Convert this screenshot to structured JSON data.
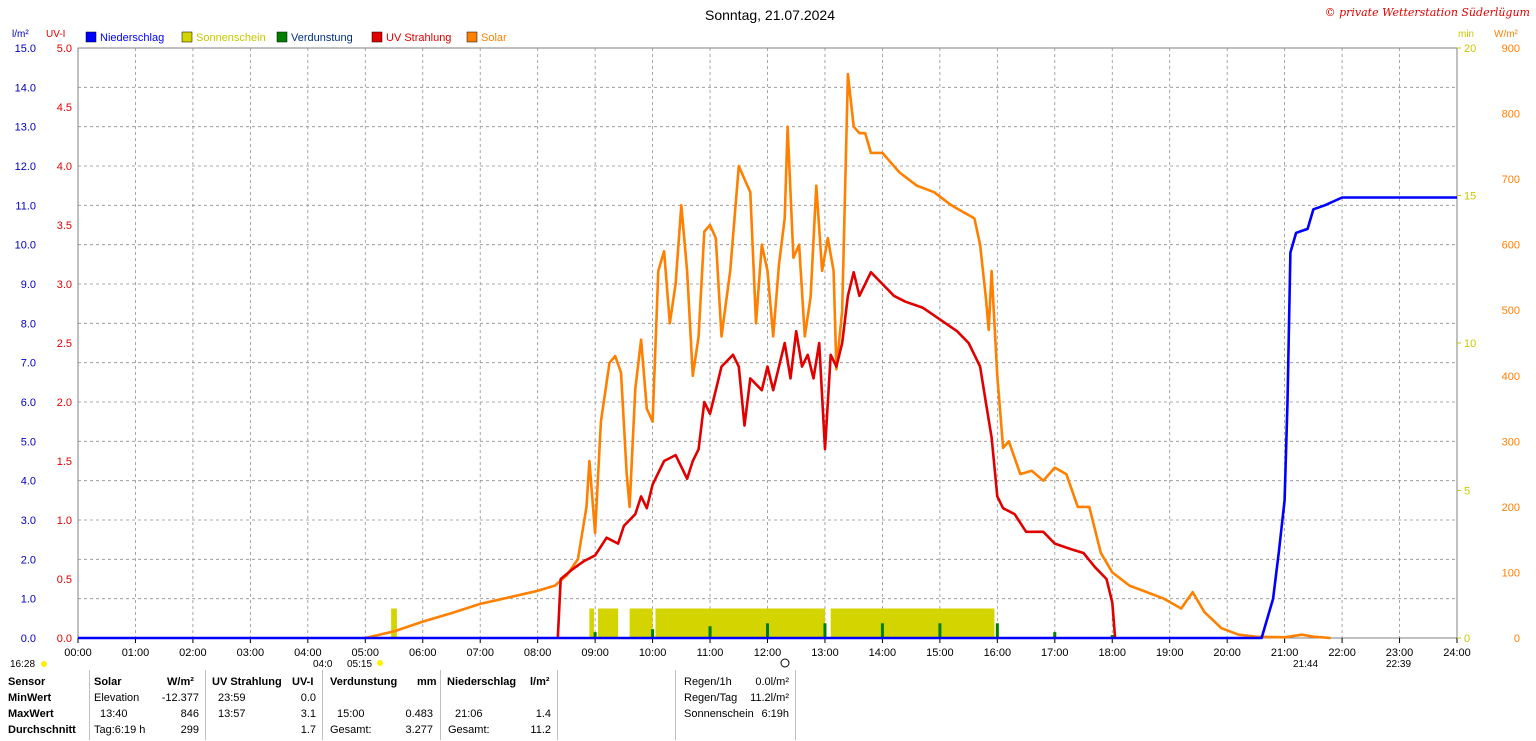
{
  "title": "Sonntag, 21.07.2024",
  "copyright": "© private Wetterstation Süderlügum",
  "units": {
    "left1": "l/m²",
    "left2": "UV-I",
    "right1": "min",
    "right2": "W/m²"
  },
  "legend": [
    {
      "label": "Niederschlag",
      "color": "#0000ff"
    },
    {
      "label": "Sonnenschein",
      "color": "#d4d400"
    },
    {
      "label": "Verdunstung",
      "color": "#008000"
    },
    {
      "label": "UV Strahlung",
      "color": "#e00000"
    },
    {
      "label": "Solar",
      "color": "#ff8000"
    }
  ],
  "markers": {
    "left_time": "16:28",
    "sunrise": "04:0",
    "t0515": "05:15",
    "t2144": "21:44",
    "t2239": "22:39"
  },
  "chart_data": {
    "type": "line",
    "title": "Sonntag, 21.07.2024",
    "x_ticks": [
      "00:00",
      "01:00",
      "02:00",
      "03:00",
      "04:00",
      "05:00",
      "06:00",
      "07:00",
      "08:00",
      "09:00",
      "10:00",
      "11:00",
      "12:00",
      "13:00",
      "14:00",
      "15:00",
      "16:00",
      "17:00",
      "18:00",
      "19:00",
      "20:00",
      "21:00",
      "22:00",
      "23:00",
      "24:00"
    ],
    "axes": {
      "rain": {
        "unit": "l/m²",
        "range": [
          0,
          15
        ],
        "ticks": [
          "0.0",
          "1.0",
          "2.0",
          "3.0",
          "4.0",
          "5.0",
          "6.0",
          "7.0",
          "8.0",
          "9.0",
          "10.0",
          "11.0",
          "12.0",
          "13.0",
          "14.0",
          "15.0"
        ]
      },
      "uv": {
        "unit": "UV-I",
        "range": [
          0,
          5
        ],
        "ticks": [
          "0.0",
          "0.5",
          "1.0",
          "1.5",
          "2.0",
          "2.5",
          "3.0",
          "3.5",
          "4.0",
          "4.5",
          "5.0"
        ]
      },
      "sunshine": {
        "unit": "min",
        "range": [
          0,
          20
        ],
        "ticks": [
          "0",
          "5",
          "10",
          "15",
          "20"
        ]
      },
      "solar": {
        "unit": "W/m²",
        "range": [
          0,
          900
        ],
        "ticks": [
          "0",
          "100",
          "200",
          "300",
          "400",
          "500",
          "600",
          "700",
          "800",
          "900"
        ]
      }
    },
    "grid": true,
    "series": [
      {
        "name": "Solar",
        "axis": "solar",
        "color": "#ff8000",
        "points": [
          [
            5.0,
            0
          ],
          [
            5.5,
            10
          ],
          [
            6.0,
            25
          ],
          [
            6.5,
            38
          ],
          [
            7.0,
            52
          ],
          [
            7.5,
            62
          ],
          [
            8.0,
            72
          ],
          [
            8.3,
            80
          ],
          [
            8.5,
            95
          ],
          [
            8.7,
            120
          ],
          [
            8.85,
            200
          ],
          [
            8.9,
            270
          ],
          [
            9.0,
            160
          ],
          [
            9.1,
            330
          ],
          [
            9.25,
            420
          ],
          [
            9.35,
            430
          ],
          [
            9.45,
            405
          ],
          [
            9.55,
            250
          ],
          [
            9.6,
            200
          ],
          [
            9.7,
            380
          ],
          [
            9.8,
            455
          ],
          [
            9.9,
            350
          ],
          [
            10.0,
            330
          ],
          [
            10.1,
            560
          ],
          [
            10.2,
            590
          ],
          [
            10.3,
            480
          ],
          [
            10.4,
            540
          ],
          [
            10.5,
            660
          ],
          [
            10.6,
            560
          ],
          [
            10.7,
            400
          ],
          [
            10.8,
            460
          ],
          [
            10.9,
            620
          ],
          [
            11.0,
            630
          ],
          [
            11.1,
            610
          ],
          [
            11.2,
            460
          ],
          [
            11.35,
            560
          ],
          [
            11.5,
            720
          ],
          [
            11.6,
            700
          ],
          [
            11.7,
            680
          ],
          [
            11.8,
            480
          ],
          [
            11.9,
            600
          ],
          [
            12.0,
            560
          ],
          [
            12.1,
            460
          ],
          [
            12.2,
            570
          ],
          [
            12.3,
            640
          ],
          [
            12.35,
            780
          ],
          [
            12.45,
            580
          ],
          [
            12.55,
            600
          ],
          [
            12.65,
            460
          ],
          [
            12.75,
            520
          ],
          [
            12.85,
            690
          ],
          [
            12.95,
            560
          ],
          [
            13.05,
            610
          ],
          [
            13.15,
            560
          ],
          [
            13.2,
            410
          ],
          [
            13.3,
            500
          ],
          [
            13.4,
            860
          ],
          [
            13.5,
            780
          ],
          [
            13.6,
            770
          ],
          [
            13.7,
            770
          ],
          [
            13.8,
            740
          ],
          [
            14.0,
            740
          ],
          [
            14.3,
            710
          ],
          [
            14.6,
            690
          ],
          [
            14.9,
            680
          ],
          [
            15.2,
            660
          ],
          [
            15.4,
            650
          ],
          [
            15.6,
            640
          ],
          [
            15.7,
            600
          ],
          [
            15.8,
            520
          ],
          [
            15.85,
            470
          ],
          [
            15.9,
            560
          ],
          [
            16.0,
            400
          ],
          [
            16.1,
            290
          ],
          [
            16.2,
            300
          ],
          [
            16.4,
            250
          ],
          [
            16.6,
            255
          ],
          [
            16.8,
            240
          ],
          [
            17.0,
            260
          ],
          [
            17.2,
            250
          ],
          [
            17.4,
            200
          ],
          [
            17.6,
            200
          ],
          [
            17.8,
            130
          ],
          [
            18.0,
            100
          ],
          [
            18.3,
            80
          ],
          [
            18.6,
            70
          ],
          [
            18.9,
            60
          ],
          [
            19.2,
            45
          ],
          [
            19.4,
            70
          ],
          [
            19.6,
            40
          ],
          [
            19.9,
            15
          ],
          [
            20.2,
            5
          ],
          [
            20.5,
            2
          ],
          [
            21.0,
            1
          ],
          [
            21.3,
            5
          ],
          [
            21.5,
            2
          ],
          [
            21.8,
            0
          ]
        ]
      },
      {
        "name": "UV Strahlung",
        "axis": "uv",
        "color": "#e00000",
        "points": [
          [
            8.35,
            0.0
          ],
          [
            8.4,
            0.5
          ],
          [
            8.6,
            0.58
          ],
          [
            8.8,
            0.65
          ],
          [
            9.0,
            0.7
          ],
          [
            9.2,
            0.85
          ],
          [
            9.4,
            0.8
          ],
          [
            9.5,
            0.95
          ],
          [
            9.6,
            1.0
          ],
          [
            9.7,
            1.05
          ],
          [
            9.8,
            1.2
          ],
          [
            9.9,
            1.1
          ],
          [
            10.0,
            1.3
          ],
          [
            10.2,
            1.5
          ],
          [
            10.4,
            1.55
          ],
          [
            10.6,
            1.35
          ],
          [
            10.7,
            1.5
          ],
          [
            10.8,
            1.6
          ],
          [
            10.9,
            2.0
          ],
          [
            11.0,
            1.9
          ],
          [
            11.1,
            2.1
          ],
          [
            11.2,
            2.3
          ],
          [
            11.4,
            2.4
          ],
          [
            11.5,
            2.3
          ],
          [
            11.6,
            1.8
          ],
          [
            11.7,
            2.2
          ],
          [
            11.9,
            2.1
          ],
          [
            12.0,
            2.3
          ],
          [
            12.1,
            2.1
          ],
          [
            12.2,
            2.3
          ],
          [
            12.3,
            2.5
          ],
          [
            12.4,
            2.2
          ],
          [
            12.5,
            2.6
          ],
          [
            12.6,
            2.3
          ],
          [
            12.7,
            2.4
          ],
          [
            12.8,
            2.2
          ],
          [
            12.9,
            2.5
          ],
          [
            13.0,
            1.6
          ],
          [
            13.1,
            2.4
          ],
          [
            13.2,
            2.3
          ],
          [
            13.3,
            2.5
          ],
          [
            13.4,
            2.9
          ],
          [
            13.5,
            3.1
          ],
          [
            13.6,
            2.9
          ],
          [
            13.7,
            3.0
          ],
          [
            13.8,
            3.1
          ],
          [
            14.0,
            3.0
          ],
          [
            14.2,
            2.9
          ],
          [
            14.4,
            2.85
          ],
          [
            14.7,
            2.8
          ],
          [
            15.0,
            2.7
          ],
          [
            15.3,
            2.6
          ],
          [
            15.5,
            2.5
          ],
          [
            15.6,
            2.4
          ],
          [
            15.7,
            2.3
          ],
          [
            15.8,
            2.0
          ],
          [
            15.9,
            1.7
          ],
          [
            16.0,
            1.2
          ],
          [
            16.1,
            1.1
          ],
          [
            16.3,
            1.05
          ],
          [
            16.5,
            0.9
          ],
          [
            16.8,
            0.9
          ],
          [
            17.0,
            0.8
          ],
          [
            17.3,
            0.75
          ],
          [
            17.5,
            0.72
          ],
          [
            17.7,
            0.6
          ],
          [
            17.9,
            0.5
          ],
          [
            18.0,
            0.3
          ],
          [
            18.05,
            0.0
          ]
        ]
      },
      {
        "name": "Niederschlag",
        "axis": "rain",
        "color": "#0000ff",
        "points": [
          [
            0,
            0
          ],
          [
            20.6,
            0
          ],
          [
            20.8,
            1.0
          ],
          [
            20.9,
            2.2
          ],
          [
            21.0,
            3.5
          ],
          [
            21.05,
            6.0
          ],
          [
            21.1,
            9.8
          ],
          [
            21.2,
            10.3
          ],
          [
            21.4,
            10.4
          ],
          [
            21.5,
            10.9
          ],
          [
            21.7,
            11.0
          ],
          [
            22.0,
            11.2
          ],
          [
            24.0,
            11.2
          ]
        ]
      },
      {
        "name": "Sonnenschein",
        "axis": "sunshine",
        "color": "#d4d400",
        "bars": [
          [
            5.45,
            5.55,
            1.0
          ],
          [
            8.9,
            8.98,
            1.0
          ],
          [
            9.05,
            9.4,
            1.0
          ],
          [
            9.6,
            10.0,
            1.0
          ],
          [
            10.05,
            13.0,
            1.0
          ],
          [
            13.1,
            15.95,
            1.0
          ]
        ]
      },
      {
        "name": "Verdunstung",
        "axis": "sunshine",
        "color": "#008000",
        "bars": [
          [
            9.0,
            0.2
          ],
          [
            10.0,
            0.3
          ],
          [
            11.0,
            0.4
          ],
          [
            12.0,
            0.5
          ],
          [
            13.0,
            0.5
          ],
          [
            14.0,
            0.5
          ],
          [
            15.0,
            0.5
          ],
          [
            16.0,
            0.5
          ],
          [
            17.0,
            0.2
          ],
          [
            18.0,
            0.1
          ]
        ]
      }
    ]
  },
  "stats": {
    "headers": {
      "sensor": "Sensor",
      "solar": "Solar",
      "solar_unit": "W/m²",
      "uv": "UV Strahlung",
      "uv_unit": "UV-I",
      "verd": "Verdunstung",
      "verd_unit": "mm",
      "rain": "Niederschlag",
      "rain_unit": "l/m²"
    },
    "rows": [
      {
        "label": "MinWert",
        "solar_time": "Elevation",
        "solar_val": "-12.377",
        "uv_time": "23:59",
        "uv_val": "0.0",
        "verd_time": "",
        "verd_val": "",
        "rain_time": "",
        "rain_val": ""
      },
      {
        "label": "MaxWert",
        "solar_time": "13:40",
        "solar_val": "846",
        "uv_time": "13:57",
        "uv_val": "3.1",
        "verd_time": "15:00",
        "verd_val": "0.483",
        "rain_time": "21:06",
        "rain_val": "1.4"
      },
      {
        "label": "Durchschnitt",
        "solar_time": "Tag:6:19 h",
        "solar_val": "299",
        "uv_time": "",
        "uv_val": "1.7",
        "verd_time": "Gesamt:",
        "verd_val": "3.277",
        "rain_time": "Gesamt:",
        "rain_val": "11.2"
      }
    ],
    "extra": [
      {
        "label": "Regen/1h",
        "value": "0.0l/m²"
      },
      {
        "label": "Regen/Tag",
        "value": "11.2l/m²"
      },
      {
        "label": "Sonnenschein",
        "value": "6:19h"
      }
    ]
  }
}
